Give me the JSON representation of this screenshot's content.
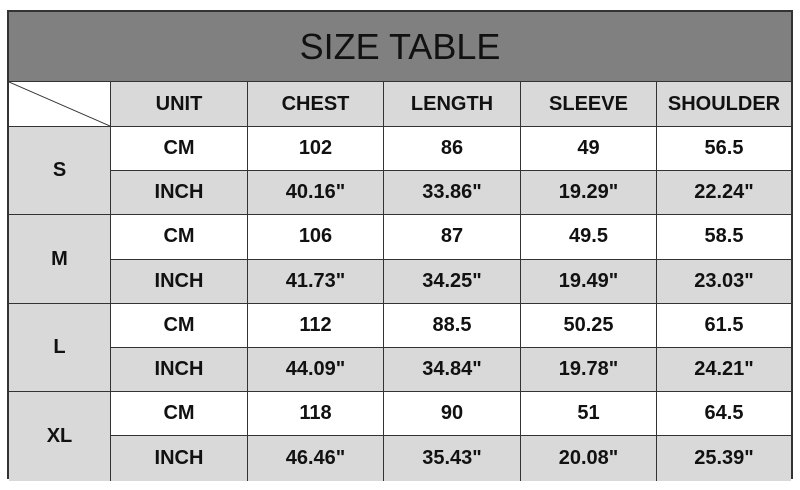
{
  "title": "SIZE TABLE",
  "headers": [
    "UNIT",
    "CHEST",
    "LENGTH",
    "SLEEVE",
    "SHOULDER"
  ],
  "sizes": [
    {
      "size": "S",
      "rows": [
        [
          "CM",
          "102",
          "86",
          "49",
          "56.5"
        ],
        [
          "INCH",
          "40.16\"",
          "33.86\"",
          "19.29\"",
          "22.24\""
        ]
      ]
    },
    {
      "size": "M",
      "rows": [
        [
          "CM",
          "106",
          "87",
          "49.5",
          "58.5"
        ],
        [
          "INCH",
          "41.73\"",
          "34.25\"",
          "19.49\"",
          "23.03\""
        ]
      ]
    },
    {
      "size": "L",
      "rows": [
        [
          "CM",
          "112",
          "88.5",
          "50.25",
          "61.5"
        ],
        [
          "INCH",
          "44.09\"",
          "34.84\"",
          "19.78\"",
          "24.21\""
        ]
      ]
    },
    {
      "size": "XL",
      "rows": [
        [
          "CM",
          "118",
          "90",
          "51",
          "64.5"
        ],
        [
          "INCH",
          "46.46\"",
          "35.43\"",
          "20.08\"",
          "25.39\""
        ]
      ]
    }
  ],
  "colors": {
    "title_bg": "#808080",
    "cell_gray": "#d9d9d9",
    "border": "#333333"
  }
}
